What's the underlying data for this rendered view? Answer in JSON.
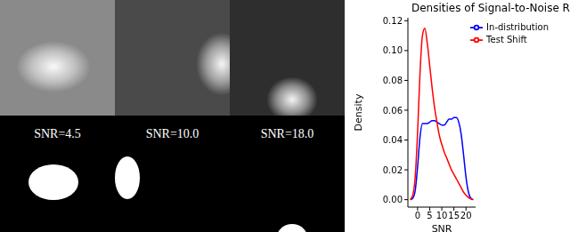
{
  "image_panels": [
    {
      "label": "SNR=4.5"
    },
    {
      "label": "SNR=10.0"
    },
    {
      "label": "SNR=18.0"
    }
  ],
  "chart_data": {
    "type": "line",
    "title": "Densities of Signal-to-Noise Ratios",
    "x_label": "SNR",
    "y_label": "Density",
    "x": [
      -3,
      -2,
      -1,
      0,
      1,
      2,
      3,
      4,
      5,
      6,
      7,
      8,
      9,
      10,
      11,
      12,
      13,
      14,
      15,
      16,
      17,
      18,
      19,
      20,
      21,
      22,
      23
    ],
    "series": [
      {
        "name": "In-distribution",
        "color": "#0000ff",
        "values": [
          0.0,
          0.001,
          0.006,
          0.022,
          0.042,
          0.051,
          0.051,
          0.051,
          0.052,
          0.053,
          0.053,
          0.052,
          0.051,
          0.05,
          0.05,
          0.052,
          0.054,
          0.054,
          0.055,
          0.055,
          0.052,
          0.044,
          0.03,
          0.015,
          0.005,
          0.001,
          0.0
        ]
      },
      {
        "name": "Test Shift",
        "color": "#ff0000",
        "values": [
          0.0,
          0.003,
          0.015,
          0.045,
          0.085,
          0.11,
          0.115,
          0.105,
          0.09,
          0.075,
          0.062,
          0.052,
          0.043,
          0.037,
          0.032,
          0.028,
          0.024,
          0.02,
          0.017,
          0.014,
          0.011,
          0.008,
          0.005,
          0.003,
          0.0015,
          0.0005,
          0.0
        ]
      }
    ],
    "xlim": [
      -4,
      24
    ],
    "xticks": [
      0,
      5,
      10,
      15,
      20
    ],
    "ylim": [
      -0.005,
      0.122
    ],
    "yticks": [
      {
        "value": 0,
        "label": "0.00"
      },
      {
        "value": 0.02,
        "label": "0.02"
      },
      {
        "value": 0.04,
        "label": "0.04"
      },
      {
        "value": 0.06,
        "label": "0.06"
      },
      {
        "value": 0.08,
        "label": "0.08"
      },
      {
        "value": 0.1,
        "label": "0.10"
      },
      {
        "value": 0.12,
        "label": "0.12"
      }
    ],
    "legend": "upper right",
    "grid": false
  }
}
